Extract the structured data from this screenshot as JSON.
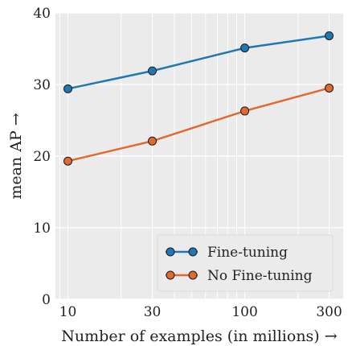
{
  "chart_data": {
    "type": "line",
    "title": "",
    "xlabel": "Number of examples (in millions) →",
    "ylabel": "mean AP →",
    "x_scale": "log",
    "xlim": [
      8.5,
      360
    ],
    "ylim": [
      0,
      40
    ],
    "x_ticks": [
      10,
      30,
      100,
      300
    ],
    "x_tick_labels": [
      "10",
      "30",
      "100",
      "300"
    ],
    "y_ticks": [
      0,
      10,
      20,
      30,
      40
    ],
    "y_tick_labels": [
      "0",
      "10",
      "20",
      "30",
      "40"
    ],
    "grid": true,
    "legend_position": "bottom-right",
    "x": [
      10,
      30,
      100,
      300
    ],
    "series": [
      {
        "name": "Fine-tuning",
        "color": "#1f77b4",
        "values": [
          29.4,
          31.9,
          35.1,
          36.8
        ]
      },
      {
        "name": "No Fine-tuning",
        "color": "#e06a30",
        "values": [
          19.3,
          22.1,
          26.3,
          29.5
        ]
      }
    ]
  }
}
